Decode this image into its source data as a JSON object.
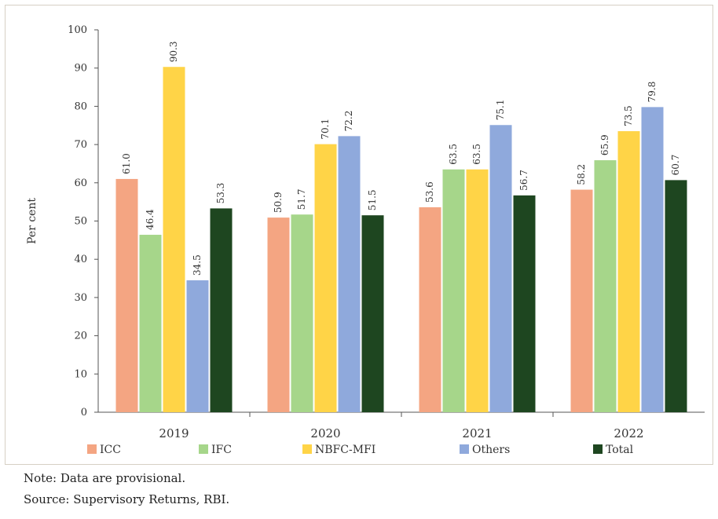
{
  "chart_data": {
    "type": "bar",
    "ylabel": "Per cent",
    "ylim": [
      0,
      100
    ],
    "yticks": [
      0,
      10,
      20,
      30,
      40,
      50,
      60,
      70,
      80,
      90,
      100
    ],
    "categories": [
      "2019",
      "2020",
      "2021",
      "2022"
    ],
    "series": [
      {
        "name": "ICC",
        "color": "#f4a582",
        "values": [
          61.0,
          50.9,
          53.6,
          58.2
        ]
      },
      {
        "name": "IFC",
        "color": "#a6d68a",
        "values": [
          46.4,
          51.7,
          63.5,
          65.9
        ]
      },
      {
        "name": "NBFC-MFI",
        "color": "#ffd447",
        "values": [
          90.3,
          70.1,
          63.5,
          73.5
        ]
      },
      {
        "name": "Others",
        "color": "#8fa9dc",
        "values": [
          34.5,
          72.2,
          75.1,
          79.8
        ]
      },
      {
        "name": "Total",
        "color": "#1e4620",
        "values": [
          53.3,
          51.5,
          56.7,
          60.7
        ]
      }
    ],
    "grid": false,
    "legend_position": "bottom"
  },
  "notes": {
    "note": "Note: Data are provisional.",
    "source": "Source: Supervisory Returns, RBI."
  }
}
